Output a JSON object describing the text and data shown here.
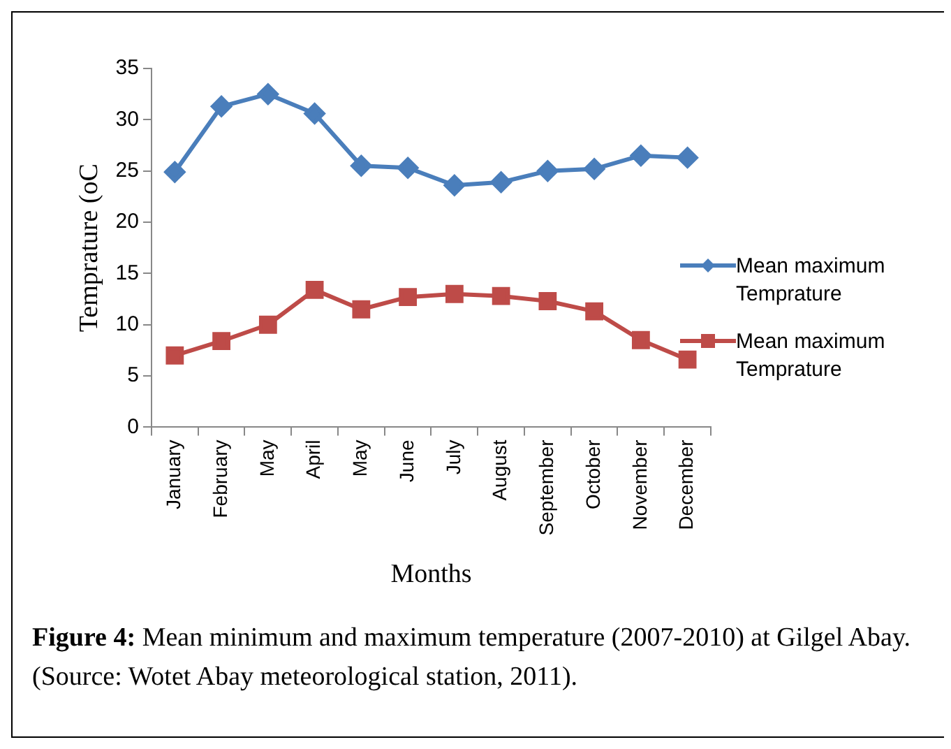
{
  "chart_data": {
    "type": "line",
    "xlabel": "Months",
    "ylabel": "Temprature (oC",
    "categories": [
      "January",
      "February",
      "May",
      "April",
      "May",
      "June",
      "July",
      "August",
      "September",
      "October",
      "November",
      "December"
    ],
    "series": [
      {
        "name": "Mean maximum Temprature",
        "color": "#4a7ebb",
        "marker": "diamond",
        "values": [
          24.9,
          31.3,
          32.5,
          30.6,
          25.5,
          25.3,
          23.6,
          23.9,
          25.0,
          25.2,
          26.5,
          26.3
        ]
      },
      {
        "name": "Mean maximum Temprature",
        "color": "#be4b48",
        "marker": "square",
        "values": [
          7.0,
          8.4,
          10.0,
          13.4,
          11.5,
          12.7,
          13.0,
          12.8,
          12.3,
          11.3,
          8.5,
          6.6
        ]
      }
    ],
    "ylim": [
      0,
      35
    ],
    "yticks": [
      0,
      5,
      10,
      15,
      20,
      25,
      30,
      35
    ],
    "grid": false,
    "legend": "right",
    "annotations": [
      "Figure 4:",
      "Mean minimum and maximum temperature (2007-2010) at Gilgel Abay. (Source: Wotet Abay meteorological station, 2011)."
    ]
  }
}
